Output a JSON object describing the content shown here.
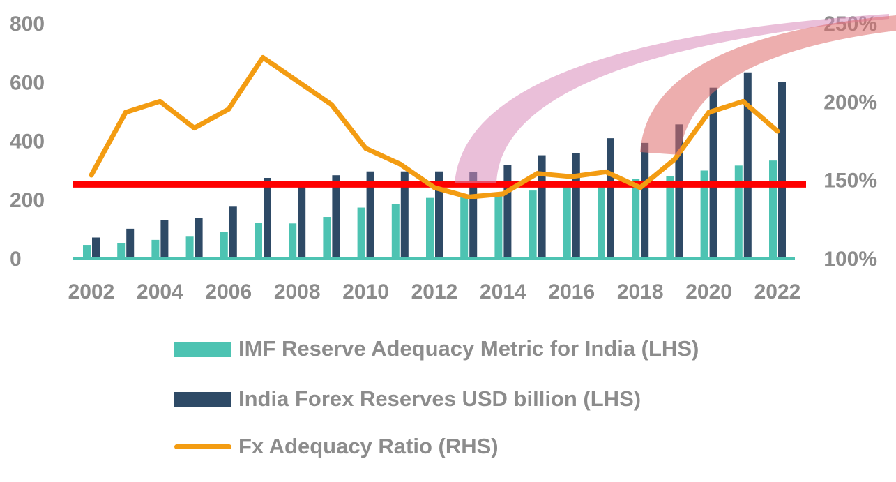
{
  "chart_data": {
    "type": "bar",
    "x": [
      "2002",
      "2003",
      "2004",
      "2005",
      "2006",
      "2007",
      "2008",
      "2009",
      "2010",
      "2011",
      "2012",
      "2013",
      "2014",
      "2015",
      "2016",
      "2017",
      "2018",
      "2019",
      "2020",
      "2021",
      "2022"
    ],
    "x_tick_labels": [
      "2002",
      "2004",
      "2006",
      "2008",
      "2010",
      "2012",
      "2014",
      "2016",
      "2018",
      "2020",
      "2022"
    ],
    "series": [
      {
        "name": "IMF Reserve Adequacy Metric for India (LHS)",
        "type": "bar",
        "axis": "left",
        "color": "#4dc3b2",
        "values": [
          45,
          52,
          62,
          73,
          90,
          120,
          118,
          140,
          172,
          185,
          205,
          215,
          222,
          230,
          245,
          258,
          270,
          280,
          298,
          315,
          332
        ]
      },
      {
        "name": "India Forex Reserves USD billion (LHS)",
        "type": "bar",
        "axis": "left",
        "color": "#2e4a66",
        "values": [
          70,
          100,
          130,
          136,
          175,
          273,
          252,
          282,
          295,
          295,
          295,
          293,
          318,
          350,
          358,
          408,
          392,
          455,
          580,
          632,
          600
        ]
      },
      {
        "name": "Fx Adequacy Ratio (RHS)",
        "type": "line",
        "axis": "right",
        "color": "#f39c12",
        "values": [
          153,
          193,
          200,
          183,
          195,
          228,
          213,
          198,
          170,
          160,
          145,
          139,
          141,
          154,
          152,
          155,
          145,
          163,
          193,
          200,
          181
        ]
      }
    ],
    "left_axis": {
      "ticks": [
        "0",
        "200",
        "400",
        "600",
        "800"
      ],
      "ylim": [
        0,
        800
      ]
    },
    "right_axis": {
      "ticks": [
        "100%",
        "150%",
        "200%",
        "250%"
      ],
      "ylim": [
        100,
        250
      ]
    },
    "reference_line": {
      "value_right_axis": 147,
      "color": "#ff0000"
    },
    "annotations": [
      {
        "kind": "arc-highlight",
        "color": "#d98ab9"
      },
      {
        "kind": "arc-highlight",
        "color": "#de6b6b"
      }
    ],
    "legend_position": "bottom",
    "grid": false
  }
}
